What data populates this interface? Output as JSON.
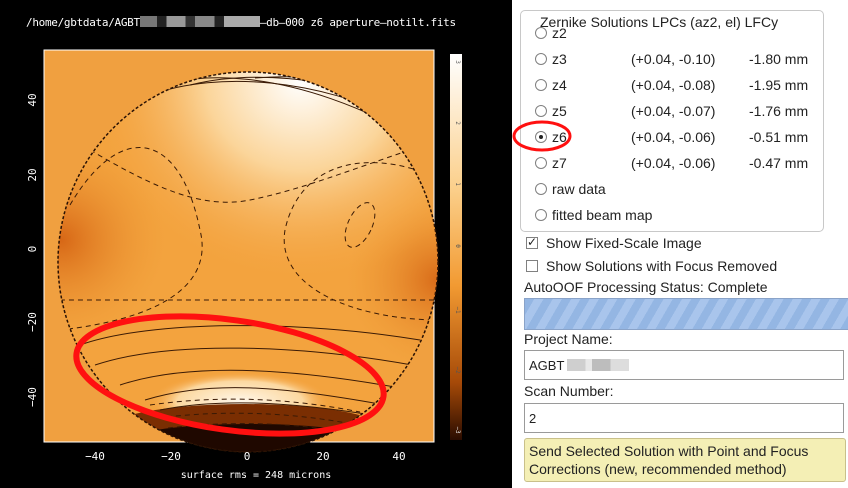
{
  "plot": {
    "title_prefix": "/home/gbtdata/AGBT",
    "title_suffix": "–db–000 z6 aperture–notilt.fits",
    "caption": "surface rms = 248 microns",
    "x_ticks": [
      "−40",
      "−20",
      "0",
      "20",
      "40"
    ],
    "y_ticks": [
      "40",
      "20",
      "0",
      "−20",
      "−40"
    ],
    "colorbar_ticks": [
      "3",
      "2",
      "1",
      "0",
      "−1",
      "−2",
      "−3"
    ],
    "colors": {
      "background": "#000000",
      "map_low": "#2a0c00",
      "map_mid": "#f8a838",
      "map_high": "#ffffff",
      "annotation": "#ff1010"
    }
  },
  "zernike": {
    "legend": "Zernike Solutions   LPCs (az2, el)   LFCy",
    "options": [
      {
        "label": "z2",
        "lpc": "",
        "lfc": "",
        "selected": false
      },
      {
        "label": "z3",
        "lpc": "(+0.04, -0.10)",
        "lfc": "-1.80 mm",
        "selected": false
      },
      {
        "label": "z4",
        "lpc": "(+0.04, -0.08)",
        "lfc": "-1.95 mm",
        "selected": false
      },
      {
        "label": "z5",
        "lpc": "(+0.04, -0.07)",
        "lfc": "-1.76 mm",
        "selected": false
      },
      {
        "label": "z6",
        "lpc": "(+0.04, -0.06)",
        "lfc": "-0.51 mm",
        "selected": true
      },
      {
        "label": "z7",
        "lpc": "(+0.04, -0.06)",
        "lfc": "-0.47 mm",
        "selected": false
      },
      {
        "label": "raw data",
        "lpc": "",
        "lfc": "",
        "selected": false
      },
      {
        "label": "fitted beam map",
        "lpc": "",
        "lfc": "",
        "selected": false
      }
    ]
  },
  "options": {
    "fixed_scale_label": "Show Fixed-Scale Image",
    "fixed_scale_checked": true,
    "focus_removed_label": "Show Solutions with Focus Removed",
    "focus_removed_checked": false
  },
  "status": {
    "label": "AutoOOF Processing Status: Complete"
  },
  "project": {
    "label": "Project Name:",
    "value": "AGBT"
  },
  "scan": {
    "label": "Scan Number:",
    "value": "2"
  },
  "send_button": {
    "line1": "Send Selected Solution with Point and Focus",
    "line2": "Corrections (new, recommended method)"
  }
}
